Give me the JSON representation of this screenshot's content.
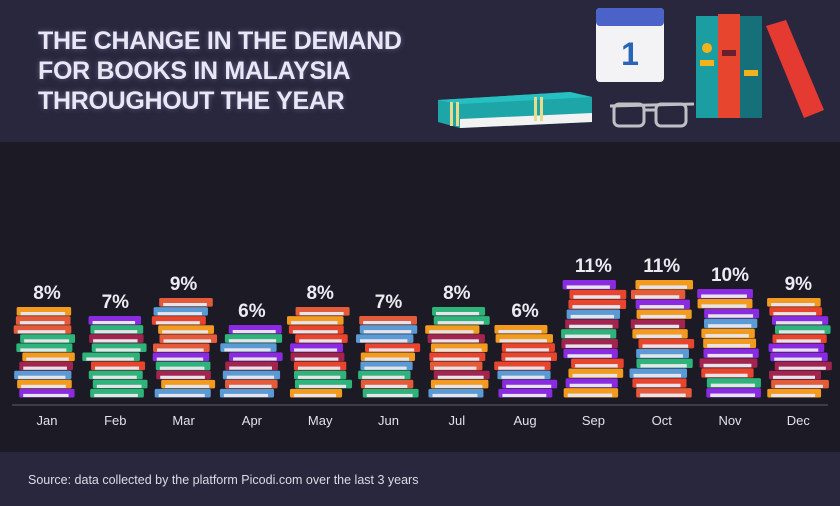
{
  "chart_data": {
    "type": "bar",
    "title": "THE CHANGE IN THE DEMAND FOR BOOKS IN MALAYSIA THROUGHOUT THE YEAR",
    "title_lines": [
      "THE CHANGE IN THE DEMAND",
      "FOR BOOKS IN MALAYSIA",
      "THROUGHOUT THE YEAR"
    ],
    "categories": [
      "Jan",
      "Feb",
      "Mar",
      "Apr",
      "May",
      "Jun",
      "Jul",
      "Aug",
      "Sep",
      "Oct",
      "Nov",
      "Dec"
    ],
    "values": [
      8,
      7,
      9,
      6,
      8,
      7,
      8,
      6,
      11,
      11,
      10,
      9
    ],
    "data_labels": [
      "8%",
      "7%",
      "9%",
      "6%",
      "8%",
      "7%",
      "8%",
      "6%",
      "11%",
      "11%",
      "10%",
      "9%"
    ],
    "unit": "%",
    "mark_style": "stacked book piles",
    "book_colors": [
      "#8a2be2",
      "#2eb37a",
      "#e8452e",
      "#f29b1e",
      "#5b9bd5",
      "#a3244f",
      "#e45b3a"
    ],
    "grid": false,
    "legend": "none"
  },
  "calendar_day": "1",
  "source": "Source: data collected by the platform Picodi.com over the last 3 years",
  "colors": {
    "header_bg": "#29273d",
    "chart_bg": "#1c1a24",
    "title": "#e9e7f6"
  }
}
